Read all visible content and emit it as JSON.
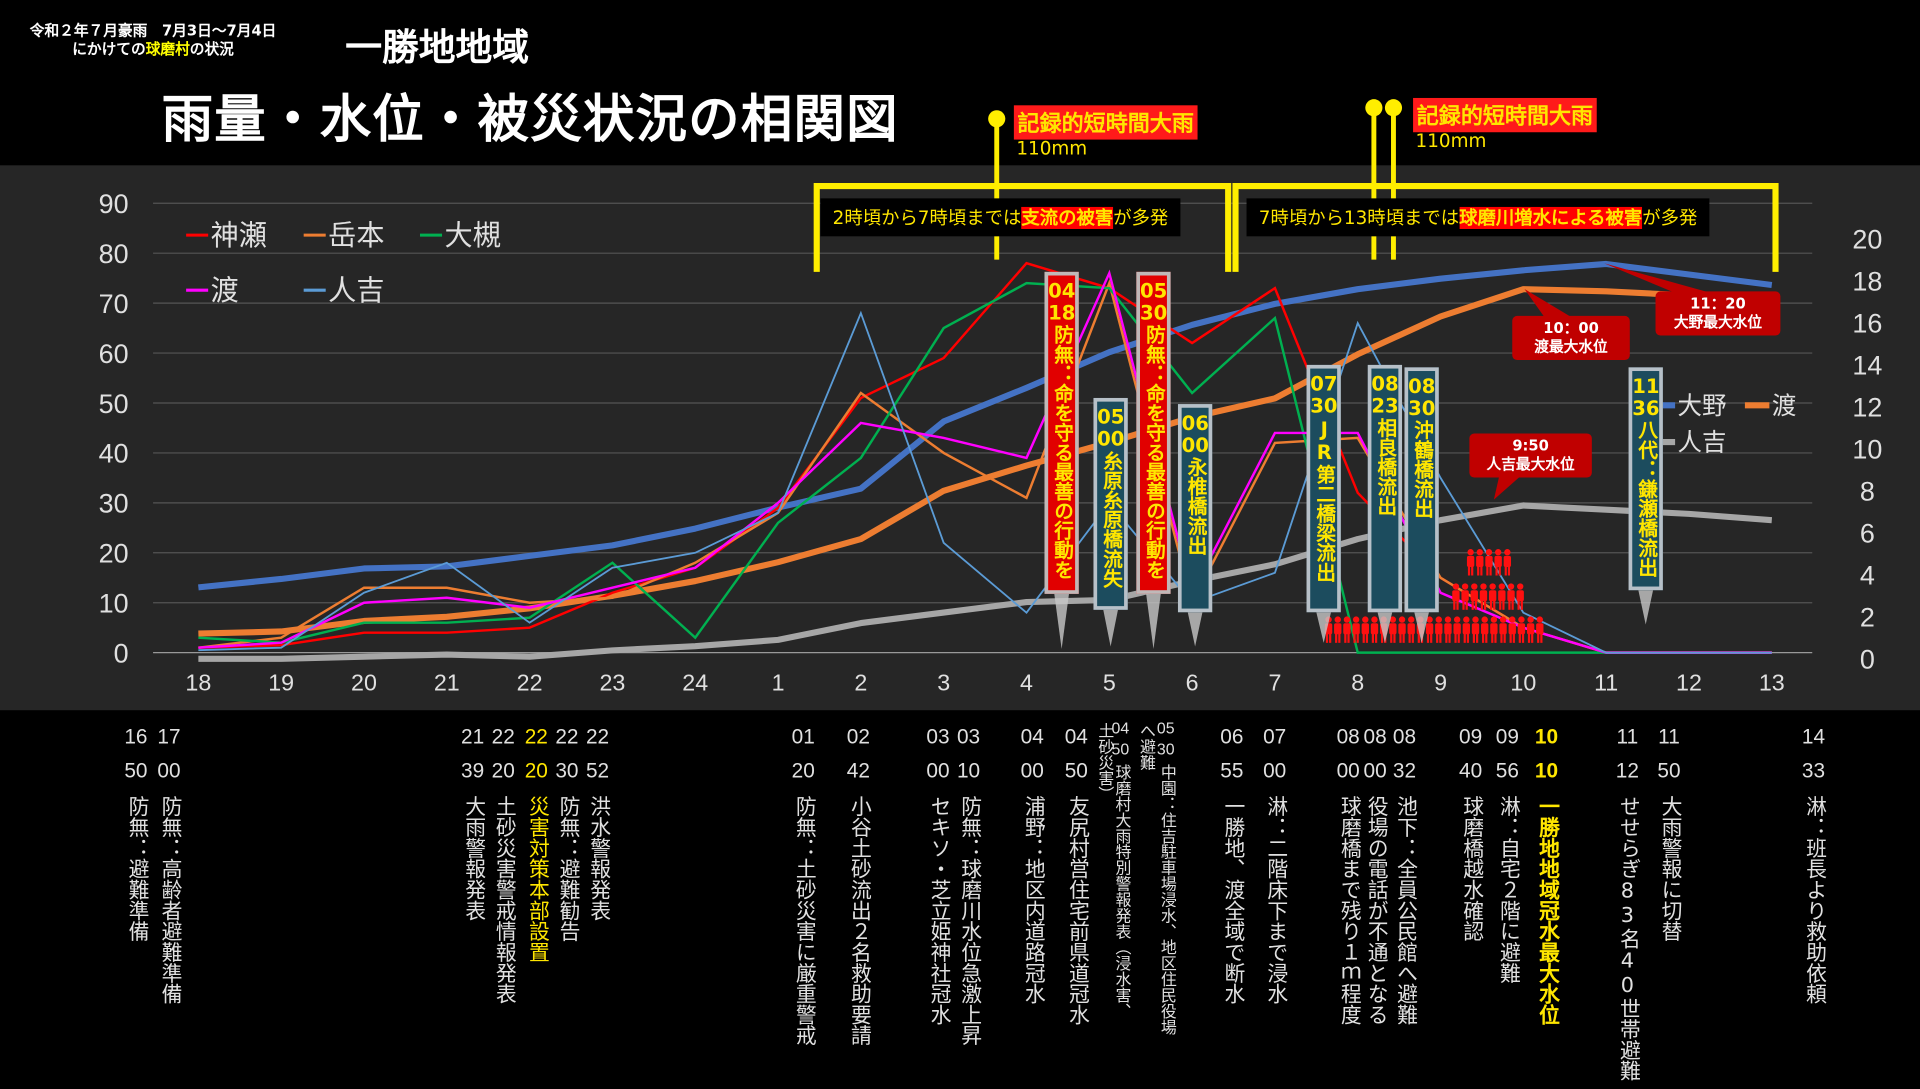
{
  "header": {
    "subtitle_line1": "令和２年７月豪雨　7月3日〜7月4日",
    "subtitle_line2_pre": "にかけての",
    "subtitle_line2_hl": "球磨村",
    "subtitle_line2_post": "の状況",
    "region": "一勝地地域",
    "title": "雨量・水位・被災状況の相関図"
  },
  "rain_events": [
    {
      "label": "記録的短時間大雨",
      "amount": "110mm"
    },
    {
      "label": "記録的短時間大雨",
      "amount": "110mm"
    }
  ],
  "brackets": [
    {
      "pre": "2時頃から7時頃までは",
      "hl": "支流の被害",
      "post": "が多発"
    },
    {
      "pre": "7時頃から13時頃までは",
      "hl": "球磨川増水による被害",
      "post": "が多発"
    }
  ],
  "chart_data": {
    "type": "line",
    "categories": [
      "18",
      "19",
      "20",
      "21",
      "22",
      "23",
      "24",
      "1",
      "2",
      "3",
      "4",
      "5",
      "6",
      "7",
      "8",
      "9",
      "10",
      "11",
      "12",
      "13"
    ],
    "y_left": {
      "ticks": [
        0,
        10,
        20,
        30,
        40,
        50,
        60,
        70,
        80,
        90
      ],
      "range": [
        0,
        90
      ]
    },
    "y_right": {
      "ticks": [
        0,
        2,
        4,
        6,
        8,
        10,
        12,
        14,
        16,
        18,
        20
      ],
      "range": [
        0,
        20
      ]
    },
    "grid": true,
    "series_left": [
      {
        "name": "神瀬",
        "color": "#ff0000",
        "values": [
          1,
          1.5,
          4,
          4,
          5,
          12,
          17,
          29,
          51,
          59,
          78,
          73,
          62,
          73,
          32,
          15,
          5,
          0,
          0,
          0
        ]
      },
      {
        "name": "岳本",
        "color": "#ed7d31",
        "values": [
          1,
          3,
          13,
          13,
          10,
          11,
          18,
          28,
          52,
          40,
          31,
          74,
          10,
          42,
          43,
          15,
          5,
          0,
          0,
          0
        ]
      },
      {
        "name": "大槻",
        "color": "#00b050",
        "values": [
          3,
          2,
          6,
          6,
          7,
          18,
          3,
          26,
          39,
          65,
          74,
          73,
          52,
          67,
          0,
          0,
          0,
          0,
          0,
          0
        ]
      },
      {
        "name": "渡",
        "color": "#ff00ff",
        "values": [
          1,
          2,
          10,
          11,
          9,
          13,
          17,
          30,
          46,
          43,
          39,
          76,
          12,
          44,
          44,
          12,
          5,
          0,
          0,
          0
        ]
      },
      {
        "name": "人吉",
        "color": "#5b9bd5",
        "values": [
          0.5,
          1,
          12,
          18,
          6,
          17,
          20,
          28,
          68,
          22,
          8,
          30,
          10,
          16,
          66,
          35,
          8,
          0,
          0,
          0
        ]
      }
    ],
    "series_right": [
      {
        "name": "大野",
        "color": "#4472c4",
        "values": [
          3.4,
          3.8,
          4.3,
          4.4,
          4.9,
          5.4,
          6.2,
          7.2,
          8.1,
          11.3,
          12.9,
          14.6,
          15.9,
          16.9,
          17.6,
          18.1,
          18.5,
          18.8,
          18.3,
          17.8
        ]
      },
      {
        "name": "渡",
        "color": "#ed7d31",
        "values": [
          1.2,
          1.3,
          1.8,
          2.0,
          2.4,
          3.0,
          3.7,
          4.6,
          5.7,
          8.0,
          9.2,
          10.3,
          11.5,
          12.4,
          14.5,
          16.3,
          17.6,
          17.5,
          17.3,
          16.8
        ]
      },
      {
        "name": "人吉",
        "color": "#a6a6a6",
        "values": [
          0,
          0,
          0.1,
          0.2,
          0.1,
          0.4,
          0.6,
          0.9,
          1.7,
          2.2,
          2.7,
          2.8,
          3.7,
          4.5,
          5.7,
          6.6,
          7.3,
          7.1,
          6.9,
          6.6
        ]
      }
    ]
  },
  "callouts": [
    {
      "hh": "04",
      "mm": "18",
      "text": "防無：命を守る最善の行動を",
      "style": "red"
    },
    {
      "hh": "05",
      "mm": "00",
      "text": "糸原糸原橋流失",
      "style": "teal"
    },
    {
      "hh": "05",
      "mm": "30",
      "text": "防無：命を守る最善の行動を",
      "style": "red"
    },
    {
      "hh": "06",
      "mm": "00",
      "text": "永椎橋流出",
      "style": "teal"
    },
    {
      "hh": "07",
      "mm": "30",
      "text": "JR第二橋梁流出",
      "style": "teal"
    },
    {
      "hh": "08",
      "mm": "23",
      "text": "相良橋流出",
      "style": "teal"
    },
    {
      "hh": "08",
      "mm": "30",
      "text": "沖鶴橋流出",
      "style": "teal"
    },
    {
      "hh": "11",
      "mm": "36",
      "text": "八代：鎌瀬橋流出",
      "style": "teal"
    }
  ],
  "max_level_callouts": [
    {
      "time": "10：00",
      "label": "渡最大水位"
    },
    {
      "time": "11：20",
      "label": "大野最大水位"
    },
    {
      "time": "9:50",
      "label": "人吉最大水位"
    }
  ],
  "timeline": [
    {
      "hh": "16",
      "mm": "50",
      "text": "防無：避難準備"
    },
    {
      "hh": "17",
      "mm": "00",
      "text": "防無：高齢者避難準備"
    },
    {
      "hh": "21",
      "mm": "39",
      "text": "大雨警報発表"
    },
    {
      "hh": "22",
      "mm": "20",
      "text": "土砂災害警戒情報発表"
    },
    {
      "hh": "22",
      "mm": "20",
      "text": "災害対策本部設置",
      "highlight": true
    },
    {
      "hh": "22",
      "mm": "30",
      "text": "防無：避難勧告"
    },
    {
      "hh": "22",
      "mm": "52",
      "text": "洪水警報発表"
    },
    {
      "hh": "01",
      "mm": "20",
      "text": "防無：土砂災害に厳重警戒"
    },
    {
      "hh": "02",
      "mm": "42",
      "text": "小谷土砂流出２名救助要請"
    },
    {
      "hh": "03",
      "mm": "00",
      "text": "セキソ・芝立姫神社冠水"
    },
    {
      "hh": "03",
      "mm": "10",
      "text": "防無：球磨川水位急激上昇"
    },
    {
      "hh": "04",
      "mm": "00",
      "text": "浦野：地区内道路冠水"
    },
    {
      "hh": "04",
      "mm": "50",
      "text": "友尻村営住宅前県道冠水"
    },
    {
      "hh": "",
      "mm": "",
      "text": "土砂災害）",
      "small": true
    },
    {
      "hh": "04",
      "mm": "50",
      "text": "球磨村大雨特別警報発表（浸水害、",
      "small": true
    },
    {
      "hh": "",
      "mm": "",
      "text": "へ避難",
      "small": true
    },
    {
      "hh": "05",
      "mm": "30",
      "text": "中園：住吉駐車場浸水、地区住民役場",
      "small": true
    },
    {
      "hh": "06",
      "mm": "55",
      "text": "一勝地、渡全域で断水"
    },
    {
      "hh": "07",
      "mm": "00",
      "text": "淋：二階床下まで浸水"
    },
    {
      "hh": "08",
      "mm": "00",
      "text": "球磨橋まで残り１ｍ程度"
    },
    {
      "hh": "08",
      "mm": "00",
      "text": "役場の電話が不通となる"
    },
    {
      "hh": "08",
      "mm": "32",
      "text": "池下：全員公民館へ避難"
    },
    {
      "hh": "09",
      "mm": "40",
      "text": "球磨橋越水確認"
    },
    {
      "hh": "09",
      "mm": "56",
      "text": "淋：自宅２階に避難"
    },
    {
      "hh": "10",
      "mm": "10",
      "text": "一勝地地域冠水最大水位",
      "highlight": true,
      "bold": true
    },
    {
      "hh": "11",
      "mm": "12",
      "text": "せせらぎ83名40世帯避難"
    },
    {
      "hh": "11",
      "mm": "50",
      "text": "大雨警報に切替"
    },
    {
      "hh": "14",
      "mm": "33",
      "text": "淋：班長より救助依頼"
    }
  ]
}
